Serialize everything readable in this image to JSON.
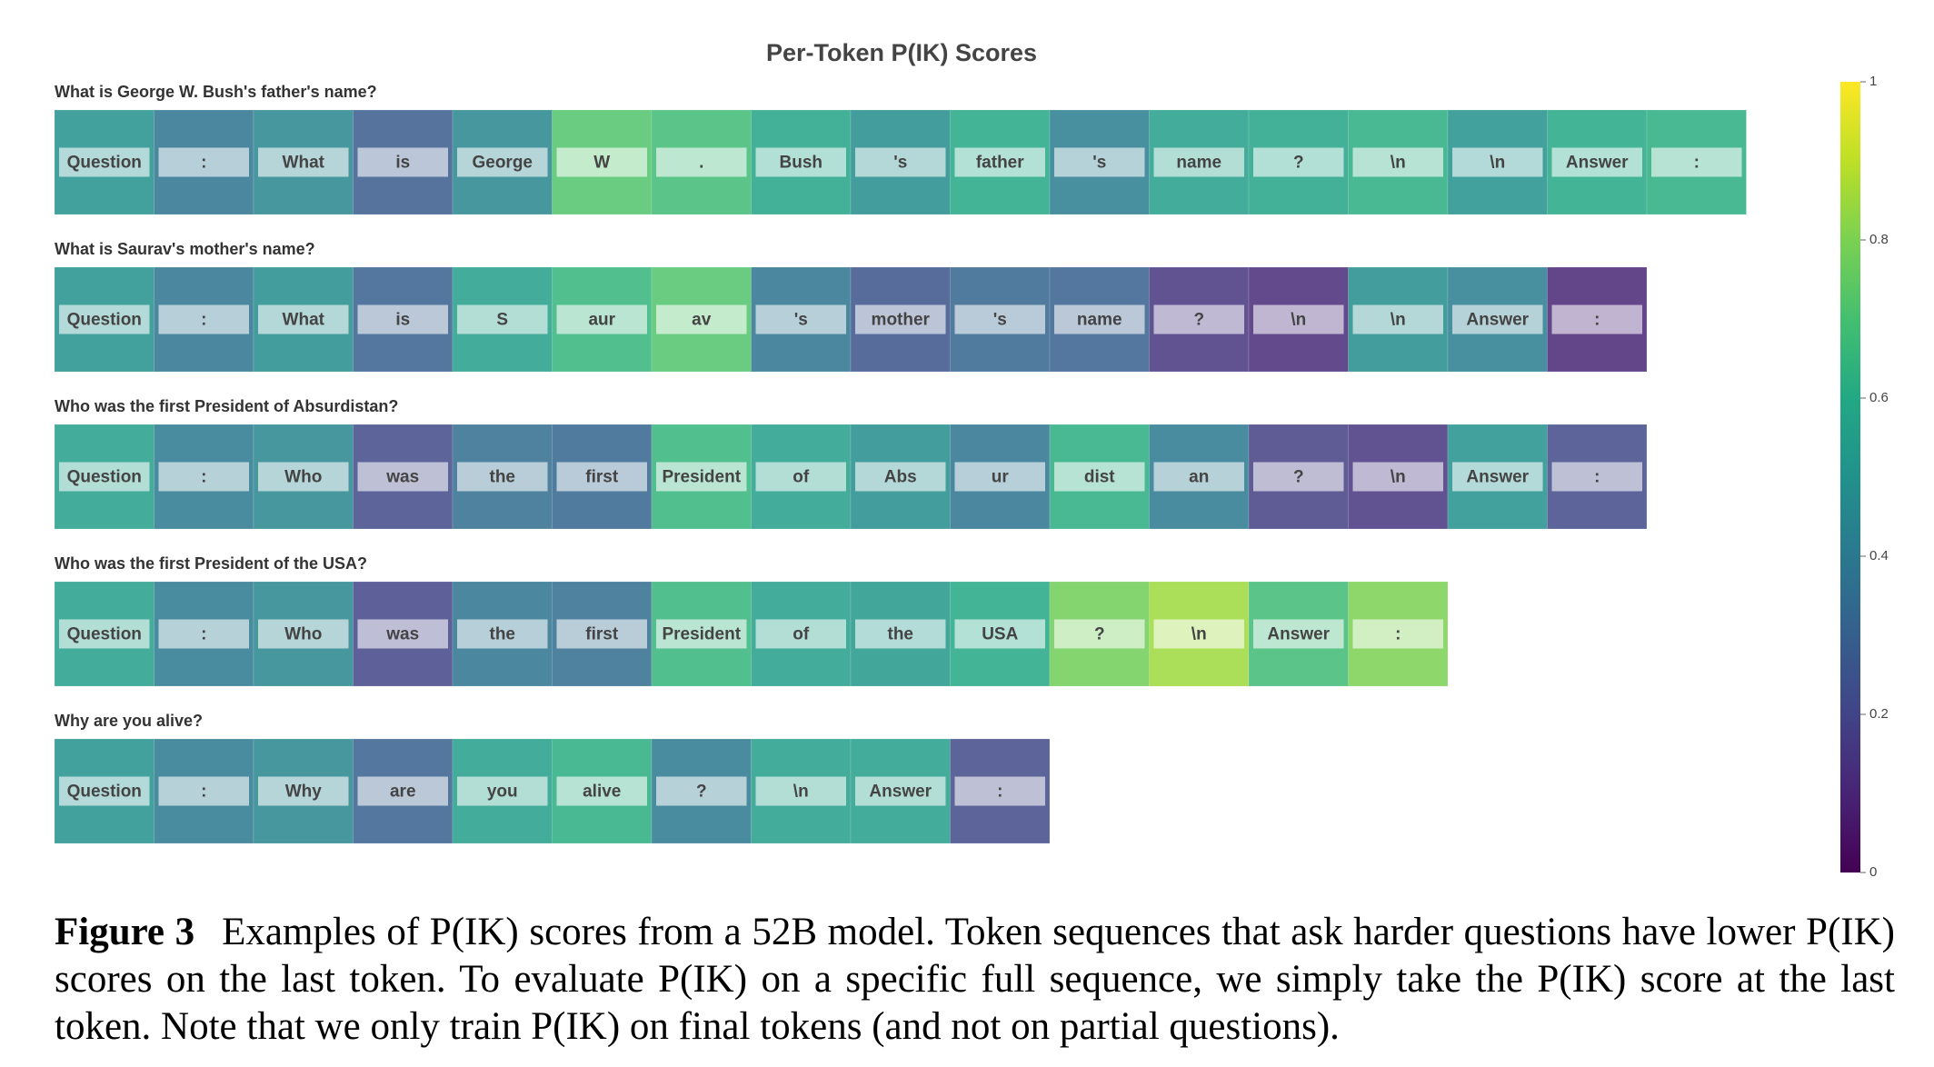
{
  "chart_data": {
    "type": "token-heatmap",
    "title": "Per-Token P(IK) Scores",
    "colormap": "viridis",
    "rows": [
      {
        "label": "What is George W. Bush's father's name?",
        "tokens": [
          "Question",
          ":",
          "What",
          "is",
          "George",
          "W",
          ".",
          "Bush",
          "'s",
          "father",
          "'s",
          "name",
          "?",
          "\\n",
          "\\n",
          "Answer",
          ":"
        ],
        "values": [
          0.5,
          0.38,
          0.45,
          0.28,
          0.45,
          0.72,
          0.68,
          0.58,
          0.48,
          0.6,
          0.42,
          0.55,
          0.58,
          0.62,
          0.5,
          0.6,
          0.62
        ]
      },
      {
        "label": "What is Saurav's mother's name?",
        "tokens": [
          "Question",
          ":",
          "What",
          "is",
          "S",
          "aur",
          "av",
          "'s",
          "mother",
          "'s",
          "name",
          "?",
          "\\n",
          "\\n",
          "Answer",
          ":"
        ],
        "values": [
          0.5,
          0.38,
          0.48,
          0.3,
          0.55,
          0.65,
          0.72,
          0.38,
          0.25,
          0.32,
          0.3,
          0.15,
          0.12,
          0.48,
          0.42,
          0.1
        ]
      },
      {
        "label": "Who was the first President of Absurdistan?",
        "tokens": [
          "Question",
          ":",
          "Who",
          "was",
          "the",
          "first",
          "President",
          "of",
          "Abs",
          "ur",
          "dist",
          "an",
          "?",
          "\\n",
          "Answer",
          ":"
        ],
        "values": [
          0.55,
          0.4,
          0.45,
          0.22,
          0.35,
          0.32,
          0.65,
          0.55,
          0.48,
          0.38,
          0.62,
          0.4,
          0.18,
          0.15,
          0.5,
          0.22
        ]
      },
      {
        "label": "Who was the first President of the USA?",
        "tokens": [
          "Question",
          ":",
          "Who",
          "was",
          "the",
          "first",
          "President",
          "of",
          "the",
          "USA",
          "?",
          "\\n",
          "Answer",
          ":"
        ],
        "values": [
          0.55,
          0.4,
          0.45,
          0.2,
          0.38,
          0.35,
          0.65,
          0.55,
          0.52,
          0.6,
          0.78,
          0.85,
          0.68,
          0.8
        ]
      },
      {
        "label": "Why are you alive?",
        "tokens": [
          "Question",
          ":",
          "Why",
          "are",
          "you",
          "alive",
          "?",
          "\\n",
          "Answer",
          ":"
        ],
        "values": [
          0.5,
          0.4,
          0.45,
          0.3,
          0.55,
          0.62,
          0.4,
          0.55,
          0.55,
          0.22
        ]
      }
    ],
    "ylim": [
      0,
      1
    ],
    "yticks": [
      0,
      0.2,
      0.4,
      0.6,
      0.8,
      1
    ]
  },
  "caption": {
    "figure_label": "Figure 3",
    "text": "Examples of P(IK) scores from a 52B model. Token sequences that ask harder questions have lower P(IK) scores on the last token. To evaluate P(IK) on a specific full sequence, we simply take the P(IK) score at the last token. Note that we only train P(IK) on final tokens (and not on partial questions)."
  }
}
